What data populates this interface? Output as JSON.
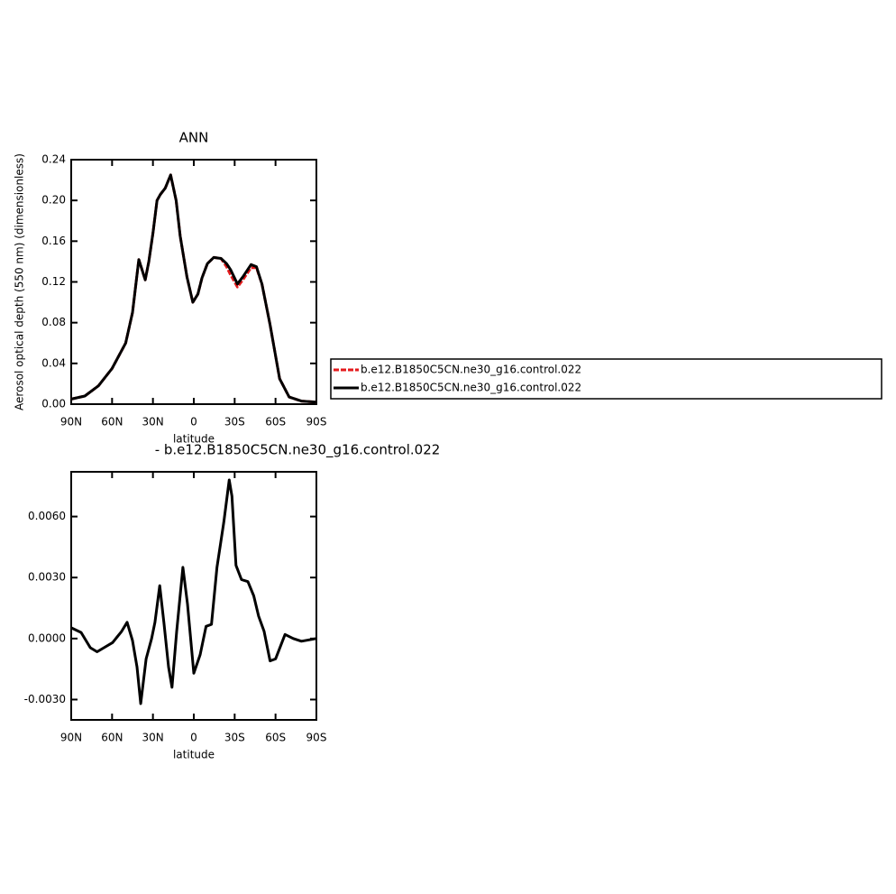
{
  "chart_data": [
    {
      "type": "line",
      "title": "ANN",
      "ylabel": "Aerosol optical depth (550 nm) (dimensionless)",
      "xlabel": "latitude",
      "x": [
        90,
        80,
        70,
        60,
        50,
        45,
        40.4,
        35.7,
        33,
        30,
        27,
        24.5,
        21,
        17,
        13,
        10,
        5,
        0.7,
        -3,
        -6,
        -10,
        -14.6,
        -20,
        -24,
        -27,
        -32,
        -36,
        -42,
        -46,
        -50,
        -56,
        -63,
        -70,
        -79,
        -90
      ],
      "series": [
        {
          "name": "b.e12.B1850C5CN.ne30_g16.control.022",
          "color": "#e41a1c",
          "dashed": true,
          "values": [
            0.005,
            0.008,
            0.018,
            0.035,
            0.06,
            0.09,
            0.142,
            0.122,
            0.14,
            0.168,
            0.2,
            0.206,
            0.212,
            0.225,
            0.2,
            0.165,
            0.125,
            0.1,
            0.108,
            0.124,
            0.138,
            0.144,
            0.143,
            0.135,
            0.127,
            0.115,
            0.122,
            0.134,
            0.134,
            0.118,
            0.078,
            0.025,
            0.007,
            0.003,
            0.002
          ]
        },
        {
          "name": "b.e12.B1850C5CN.ne30_g16.control.022",
          "color": "#000000",
          "dashed": false,
          "values": [
            0.005,
            0.008,
            0.018,
            0.035,
            0.06,
            0.09,
            0.142,
            0.122,
            0.14,
            0.168,
            0.2,
            0.206,
            0.212,
            0.225,
            0.2,
            0.165,
            0.125,
            0.1,
            0.108,
            0.124,
            0.138,
            0.144,
            0.143,
            0.138,
            0.132,
            0.118,
            0.125,
            0.137,
            0.135,
            0.118,
            0.078,
            0.025,
            0.007,
            0.003,
            0.002
          ]
        }
      ],
      "xlim": [
        90,
        -90
      ],
      "xticks": [
        {
          "value": 90,
          "label": "90N"
        },
        {
          "value": 60,
          "label": "60N"
        },
        {
          "value": 30,
          "label": "30N"
        },
        0,
        {
          "value": -30,
          "label": "30S"
        },
        {
          "value": -60,
          "label": "60S"
        },
        {
          "value": -90,
          "label": "90S"
        }
      ],
      "ylim": [
        0,
        0.24
      ],
      "yticks": [
        {
          "value": 0,
          "label": "0.00"
        },
        0.04,
        0.08,
        0.12,
        0.16,
        {
          "value": 0.2,
          "label": "0.20"
        },
        0.24
      ],
      "legend": "right"
    },
    {
      "type": "line",
      "title": "- b.e12.B1850C5CN.ne30_g16.control.022",
      "xlabel": "latitude",
      "x": [
        90,
        82.7,
        76,
        71,
        66,
        59.6,
        53,
        49,
        45,
        41.7,
        39,
        35,
        31,
        28.5,
        25,
        22,
        18.5,
        16,
        12.6,
        8,
        4.6,
        0,
        -4.6,
        -9,
        -13,
        -17,
        -22,
        -26,
        -28,
        -31,
        -35,
        -39.7,
        -44,
        -47.6,
        -51.6,
        -56,
        -60,
        -67,
        -73,
        -79,
        -90
      ],
      "series": [
        {
          "color": "#000000",
          "values": [
            0.00053,
            0.0003,
            -0.00045,
            -0.00065,
            -0.00045,
            -0.0002,
            0.00035,
            0.0008,
            -0.0001,
            -0.0014,
            -0.0032,
            -0.001,
            0,
            0.0008,
            0.0026,
            0.0008,
            -0.0014,
            -0.0024,
            0.00035,
            0.0035,
            0.0017,
            -0.0017,
            -0.0008,
            0.0006,
            0.0007,
            0.0035,
            0.0057,
            0.0078,
            0.007,
            0.0036,
            0.0029,
            0.0028,
            0.0021,
            0.0011,
            0.00035,
            -0.0011,
            -0.001,
            0.0002,
            0,
            -0.00013,
            0
          ]
        }
      ],
      "xlim": [
        90,
        -90
      ],
      "xticks": [
        {
          "value": 90,
          "label": "90N"
        },
        {
          "value": 60,
          "label": "60N"
        },
        {
          "value": 30,
          "label": "30N"
        },
        0,
        {
          "value": -30,
          "label": "30S"
        },
        {
          "value": -60,
          "label": "60S"
        },
        {
          "value": -90,
          "label": "90S"
        }
      ],
      "ylim": [
        -0.004,
        0.0082
      ],
      "yticks": [
        {
          "value": -0.003,
          "label": "-0.0030"
        },
        {
          "value": 0,
          "label": "0.0000"
        },
        {
          "value": 0.003,
          "label": "0.0030"
        },
        {
          "value": 0.006,
          "label": "0.0060"
        }
      ]
    }
  ]
}
